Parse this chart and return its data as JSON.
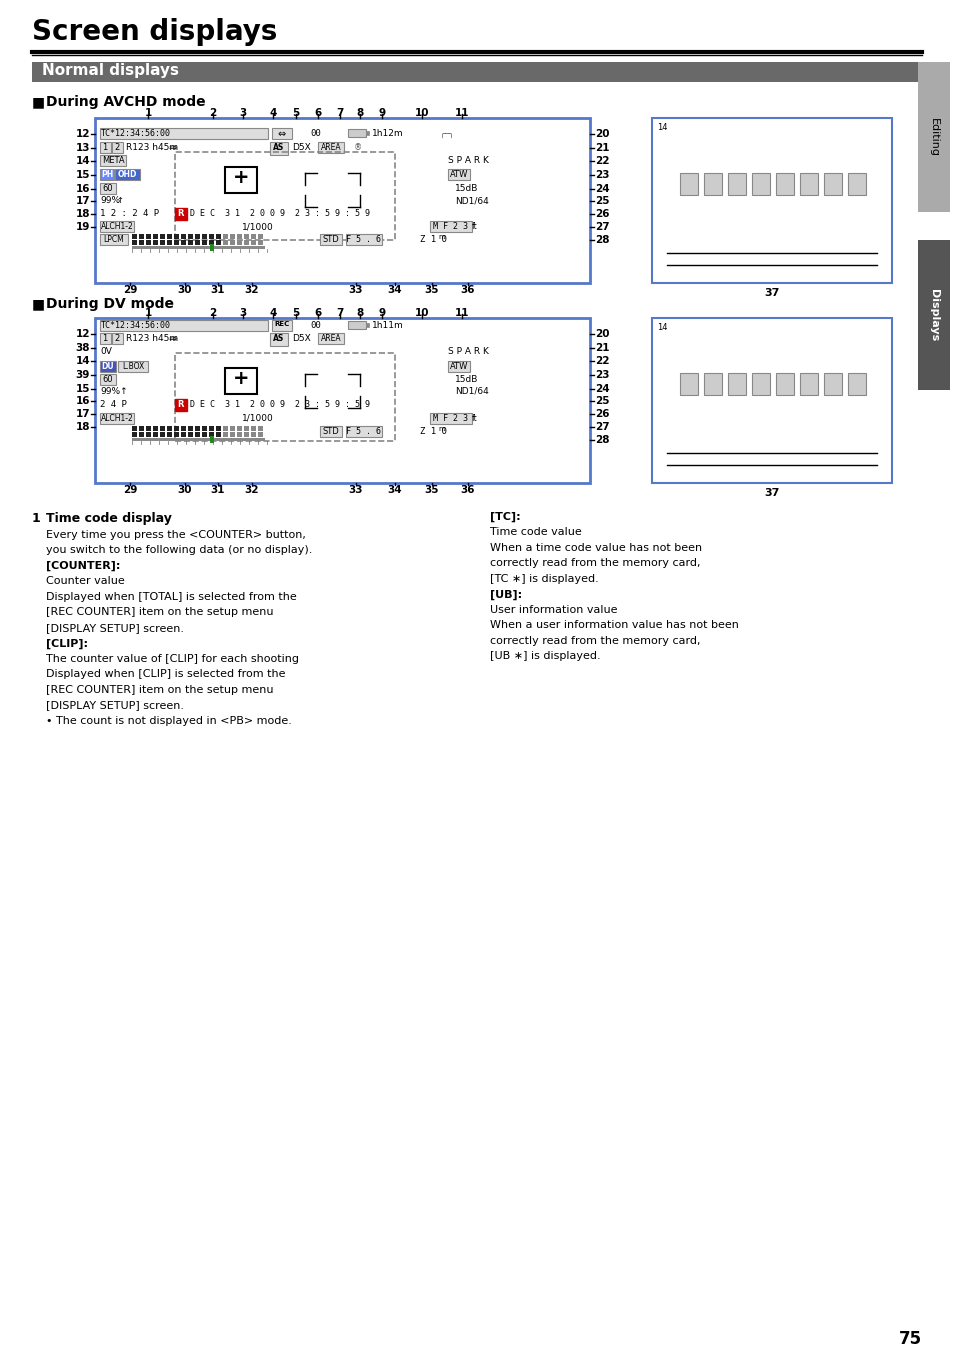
{
  "title": "Screen displays",
  "section_header": "Normal displays",
  "avchd_label": "During AVCHD mode",
  "dv_label": "During DV mode",
  "page_number": "75",
  "header_bg": "#696969",
  "header_fg": "#ffffff",
  "diagram_border_avchd": "#5577cc",
  "diagram_border_dv": "#5577cc",
  "avchd_top_nums": [
    "1",
    "2",
    "3",
    "4",
    "5",
    "6",
    "7",
    "8",
    "9",
    "10",
    "11"
  ],
  "avchd_left_nums": [
    "12",
    "13",
    "14",
    "15",
    "16",
    "17",
    "18",
    "19"
  ],
  "avchd_right_nums": [
    "20",
    "21",
    "22",
    "23",
    "24",
    "25",
    "26",
    "27",
    "28"
  ],
  "avchd_bot_nums": [
    "29",
    "30",
    "31",
    "32",
    "33",
    "34",
    "35",
    "36"
  ],
  "dv_left_nums": [
    "12",
    "38",
    "14",
    "39",
    "15",
    "16",
    "17",
    "18"
  ],
  "dv_right_nums": [
    "20",
    "21",
    "22",
    "23",
    "24",
    "25",
    "26",
    "27",
    "28"
  ],
  "dv_bot_nums": [
    "29",
    "30",
    "31",
    "32",
    "33",
    "34",
    "35",
    "36"
  ]
}
